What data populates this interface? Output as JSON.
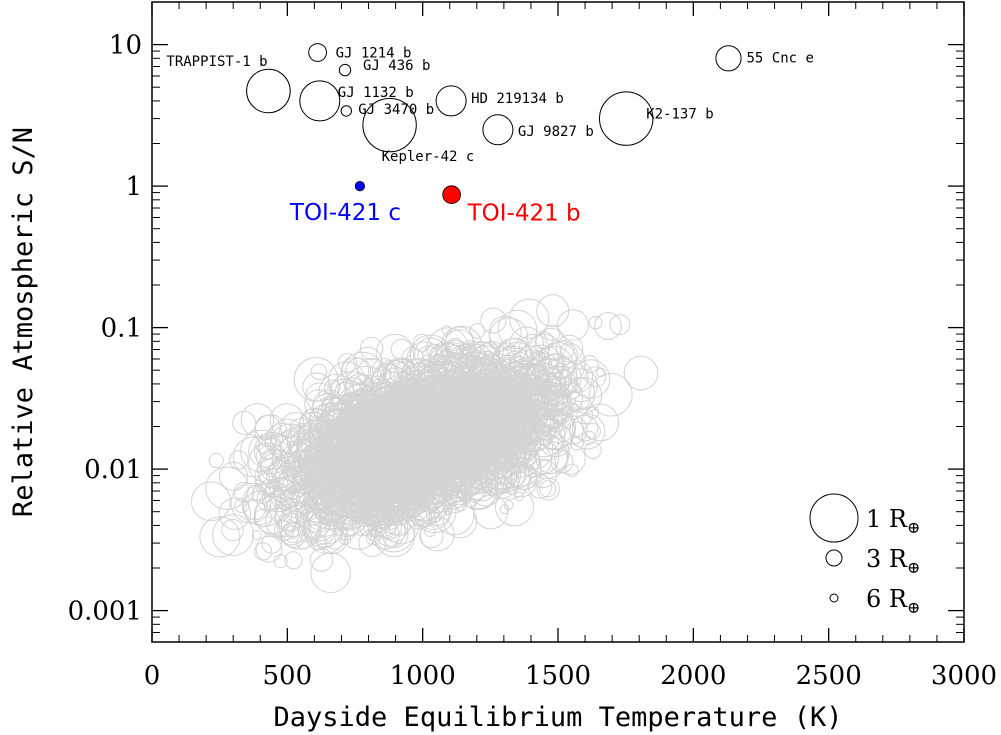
{
  "chart_data": {
    "type": "scatter",
    "xlabel": "Dayside Equilibrium Temperature (K)",
    "ylabel": "Relative Atmospheric S/N",
    "xlim": [
      0,
      3000
    ],
    "ylim": [
      0.0006,
      20
    ],
    "yscale": "log",
    "x_ticks": [
      0,
      500,
      1000,
      1500,
      2000,
      2500,
      3000
    ],
    "y_ticks": [
      {
        "value": 0.001,
        "label": "0.001"
      },
      {
        "value": 0.01,
        "label": "0.01"
      },
      {
        "value": 0.1,
        "label": "0.1"
      },
      {
        "value": 1,
        "label": "1"
      },
      {
        "value": 10,
        "label": "10"
      }
    ],
    "grid": false,
    "background_color": "#d3d3d3",
    "named_planets": [
      {
        "name": "TRAPPIST-1 b",
        "x": 430,
        "y": 4.7,
        "radius_re": 1.1
      },
      {
        "name": "GJ 1214 b",
        "x": 612,
        "y": 8.8,
        "radius_re": 2.7
      },
      {
        "name": "GJ 436 b",
        "x": 713,
        "y": 6.6,
        "radius_re": 4.2
      },
      {
        "name": "GJ 1132 b",
        "x": 620,
        "y": 4.0,
        "radius_re": 1.2
      },
      {
        "name": "GJ 3470 b",
        "x": 718,
        "y": 3.4,
        "radius_re": 4.6
      },
      {
        "name": "Kepler-42 c",
        "x": 878,
        "y": 2.7,
        "radius_re": 0.9
      },
      {
        "name": "HD 219134 b",
        "x": 1105,
        "y": 4.0,
        "radius_re": 1.6
      },
      {
        "name": "GJ 9827 b",
        "x": 1278,
        "y": 2.5,
        "radius_re": 1.6
      },
      {
        "name": "K2-137 b",
        "x": 1752,
        "y": 3.0,
        "radius_re": 0.9
      },
      {
        "name": "55 Cnc e",
        "x": 2130,
        "y": 8.0,
        "radius_re": 1.9
      }
    ],
    "highlighted": [
      {
        "name": "TOI-421 c",
        "x": 768,
        "y": 1.0,
        "color": "#0000ff",
        "radius_re": 5.1
      },
      {
        "name": "TOI-421 b",
        "x": 1107,
        "y": 0.87,
        "color": "#ff0000",
        "radius_re": 2.7
      }
    ],
    "legend": {
      "position": "bottom-right",
      "entries": [
        {
          "label": "1 R",
          "radius_re": 1
        },
        {
          "label": "3 R",
          "radius_re": 3
        },
        {
          "label": "6 R",
          "radius_re": 6
        }
      ],
      "symbol": "⊕"
    }
  }
}
